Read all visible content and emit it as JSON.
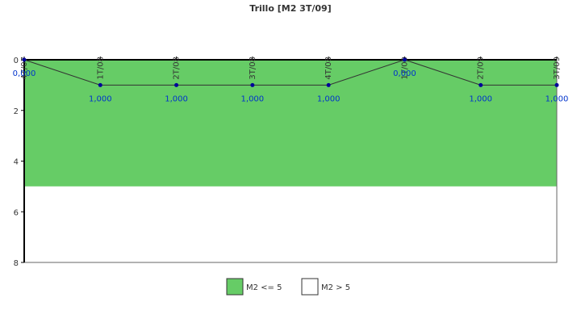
{
  "chart_data": {
    "type": "line",
    "title": "Trillo [M2 3T/09]",
    "categories": [
      "4T/07",
      "1T/08",
      "2T/08",
      "3T/08",
      "4T/08",
      "1T/09",
      "2T/09",
      "3T/09"
    ],
    "series": [
      {
        "color": "#333333",
        "point_color": "#000099",
        "label_color": "#0033cc",
        "values": [
          0,
          1,
          1,
          1,
          1,
          0,
          1,
          1
        ],
        "value_labels": [
          "0,000",
          "1,000",
          "1,000",
          "1,000",
          "1,000",
          "0,000",
          "1,000",
          "1,000"
        ]
      }
    ],
    "bands": [
      {
        "name": "M2 <= 5",
        "color": "#66cc66",
        "from": 0,
        "to": 5
      },
      {
        "name": "M2 > 5",
        "color": "#ffffff",
        "from": 5,
        "to": 8
      }
    ],
    "ylim": [
      0,
      8
    ],
    "y_inverted": true,
    "yticks": [
      0,
      2,
      4,
      6,
      8
    ]
  }
}
